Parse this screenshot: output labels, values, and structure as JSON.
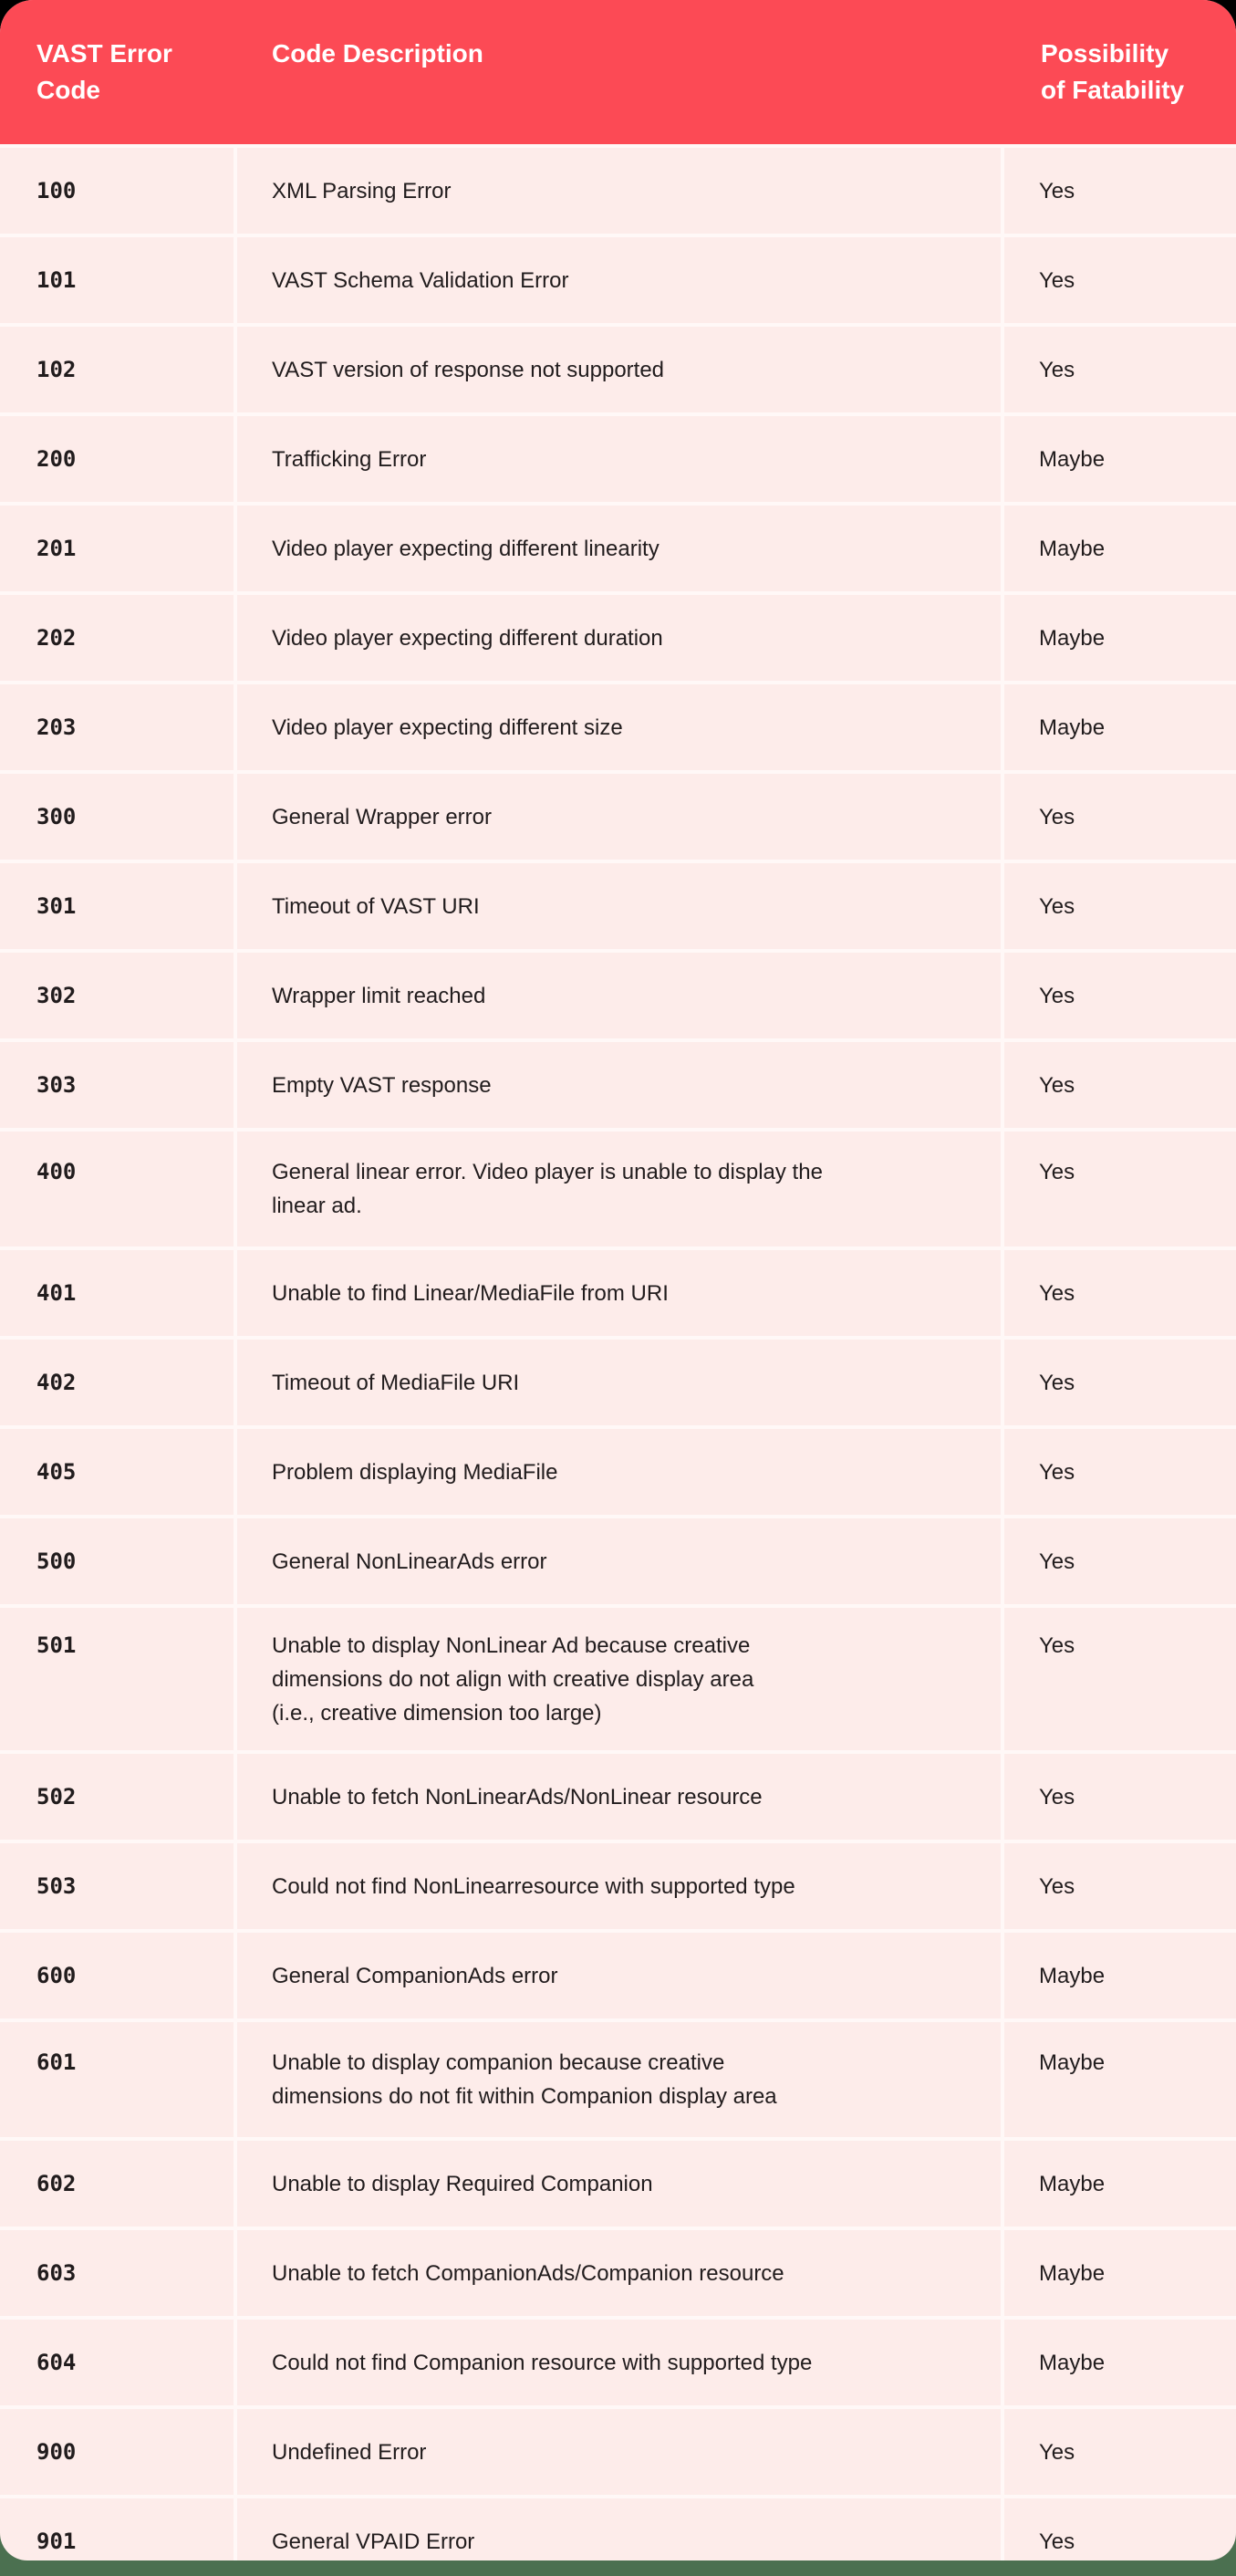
{
  "colors": {
    "header_red": "#FC4A55",
    "body_pink": "#FDECEA",
    "separator": "#FFF8F7",
    "text": "#211C1D",
    "bottom_strip_green": "#4B7050",
    "top_background": "#000000",
    "header_text": "#FFFFFF"
  },
  "table": {
    "columns": [
      {
        "label": "VAST Error\nCode"
      },
      {
        "label": "Code Description"
      },
      {
        "label": "Possibility\nof Fatability"
      }
    ],
    "rows": [
      {
        "code": "100",
        "description": "XML Parsing Error",
        "fatability": "Yes"
      },
      {
        "code": "101",
        "description": "VAST Schema Validation Error",
        "fatability": "Yes"
      },
      {
        "code": "102",
        "description": "VAST version of response not supported",
        "fatability": "Yes"
      },
      {
        "code": "200",
        "description": "Trafficking Error",
        "fatability": "Maybe"
      },
      {
        "code": "201",
        "description": "Video player expecting different linearity",
        "fatability": "Maybe"
      },
      {
        "code": "202",
        "description": "Video player expecting different duration",
        "fatability": "Maybe"
      },
      {
        "code": "203",
        "description": "Video player expecting different size",
        "fatability": "Maybe"
      },
      {
        "code": "300",
        "description": "General Wrapper error",
        "fatability": "Yes"
      },
      {
        "code": "301",
        "description": "Timeout of VAST URI",
        "fatability": "Yes"
      },
      {
        "code": "302",
        "description": "Wrapper limit reached",
        "fatability": "Yes"
      },
      {
        "code": "303",
        "description": "Empty VAST response",
        "fatability": "Yes"
      },
      {
        "code": "400",
        "description": "General linear error. Video player is unable to display the\nlinear ad.",
        "fatability": "Yes"
      },
      {
        "code": "401",
        "description": "Unable to find Linear/MediaFile from URI",
        "fatability": "Yes"
      },
      {
        "code": "402",
        "description": "Timeout of MediaFile URI",
        "fatability": "Yes"
      },
      {
        "code": "405",
        "description": "Problem displaying MediaFile",
        "fatability": "Yes"
      },
      {
        "code": "500",
        "description": "General NonLinearAds error",
        "fatability": "Yes"
      },
      {
        "code": "501",
        "description": "Unable to display NonLinear Ad because creative\ndimensions do not align with creative display area\n(i.e., creative dimension too large)",
        "fatability": "Yes"
      },
      {
        "code": "502",
        "description": "Unable to fetch NonLinearAds/NonLinear resource",
        "fatability": "Yes"
      },
      {
        "code": "503",
        "description": "Could not find NonLinearresource with supported type",
        "fatability": "Yes"
      },
      {
        "code": "600",
        "description": "General CompanionAds error",
        "fatability": "Maybe"
      },
      {
        "code": "601",
        "description": "Unable to display companion because creative\ndimensions do not fit within Companion display area",
        "fatability": "Maybe"
      },
      {
        "code": "602",
        "description": "Unable to display Required Companion",
        "fatability": "Maybe"
      },
      {
        "code": "603",
        "description": "Unable to fetch CompanionAds/Companion resource",
        "fatability": "Maybe"
      },
      {
        "code": "604",
        "description": "Could not find Companion resource with supported type",
        "fatability": "Maybe"
      },
      {
        "code": "900",
        "description": "Undefined Error",
        "fatability": "Yes"
      },
      {
        "code": "901",
        "description": "General VPAID Error",
        "fatability": "Yes"
      }
    ]
  }
}
